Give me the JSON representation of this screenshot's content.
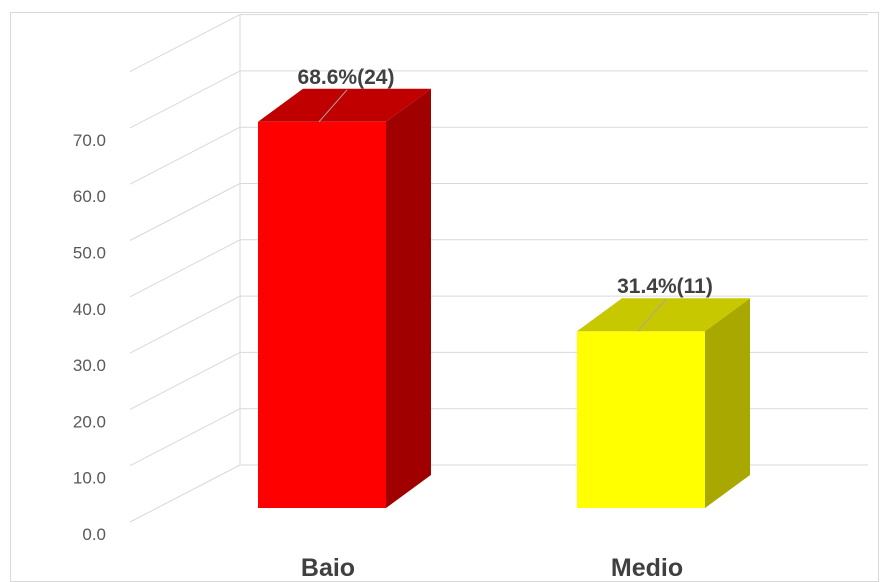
{
  "chart_data": {
    "type": "bar",
    "style": "3d-column",
    "categories": [
      "Baio",
      "Medio"
    ],
    "values": [
      68.6,
      31.4
    ],
    "counts": [
      24,
      11
    ],
    "data_labels": [
      "68.6%(24)",
      "31.4%(11)"
    ],
    "colors": {
      "Baio": {
        "front": "#ff0000",
        "top": "#c00000",
        "side": "#a00000"
      },
      "Medio": {
        "front": "#ffff00",
        "top": "#c8c800",
        "side": "#a8a800"
      }
    },
    "yticks": [
      "0.0",
      "10.0",
      "20.0",
      "30.0",
      "40.0",
      "50.0",
      "60.0",
      "70.0"
    ],
    "ylim": [
      0,
      70
    ],
    "grid": true,
    "legend": "none",
    "title": "",
    "xlabel": "",
    "ylabel": ""
  }
}
